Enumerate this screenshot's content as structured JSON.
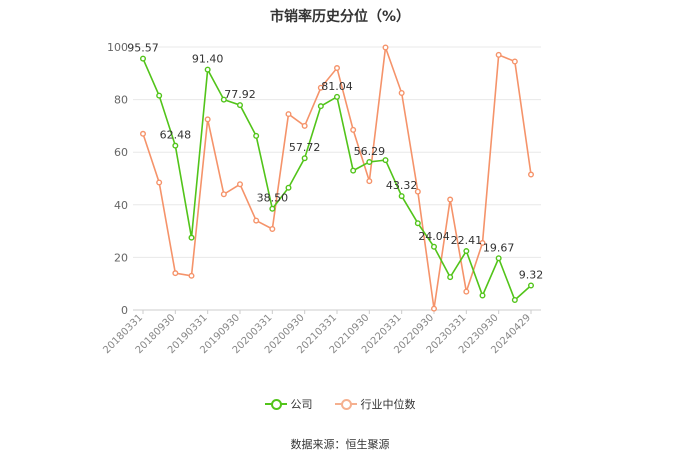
{
  "title": "市销率历史分位（%）",
  "source": "数据来源：恒生聚源",
  "colors": {
    "company": "#52c41a",
    "industry": "#f08c5a",
    "grid": "#e8e8e8",
    "axis": "#999999",
    "text": "#333333"
  },
  "chart_data": {
    "type": "line",
    "title": "市销率历史分位（%）",
    "ylim": [
      0,
      100
    ],
    "yticks": [
      0,
      20,
      40,
      60,
      80,
      100
    ],
    "grid": true,
    "legend_position": "bottom",
    "x_tick_labels": [
      "20180331",
      "20180930",
      "20190331",
      "20190930",
      "20200331",
      "20200930",
      "20210331",
      "20210930",
      "20220331",
      "20220930",
      "20230331",
      "20230930",
      "20240429"
    ],
    "x_tick_positions": [
      0,
      2,
      4,
      6,
      8,
      10,
      12,
      14,
      16,
      18,
      20,
      22,
      24
    ],
    "series": [
      {
        "name": "公司",
        "color": "#52c41a",
        "values": [
          95.57,
          81.5,
          62.48,
          27.5,
          91.4,
          80.0,
          77.92,
          66.2,
          38.5,
          46.5,
          57.72,
          77.5,
          81.04,
          53.0,
          56.29,
          57.0,
          43.32,
          33.0,
          24.04,
          12.5,
          22.41,
          5.5,
          19.67,
          3.8,
          9.32
        ],
        "labels": {
          "0": "95.57",
          "2": "62.48",
          "4": "91.40",
          "6": "77.92",
          "8": "38.50",
          "10": "57.72",
          "12": "81.04",
          "14": "56.29",
          "16": "43.32",
          "18": "24.04",
          "20": "22.41",
          "22": "19.67",
          "24": "9.32"
        }
      },
      {
        "name": "行业中位数",
        "color": "#f08c5a",
        "values": [
          67.0,
          48.5,
          14.0,
          13.0,
          72.5,
          44.0,
          47.8,
          34.0,
          30.8,
          74.5,
          70.0,
          84.5,
          92.0,
          68.5,
          49.0,
          99.8,
          82.5,
          45.0,
          0.5,
          42.0,
          7.0,
          25.5,
          97.0,
          94.5,
          51.5
        ]
      }
    ]
  }
}
